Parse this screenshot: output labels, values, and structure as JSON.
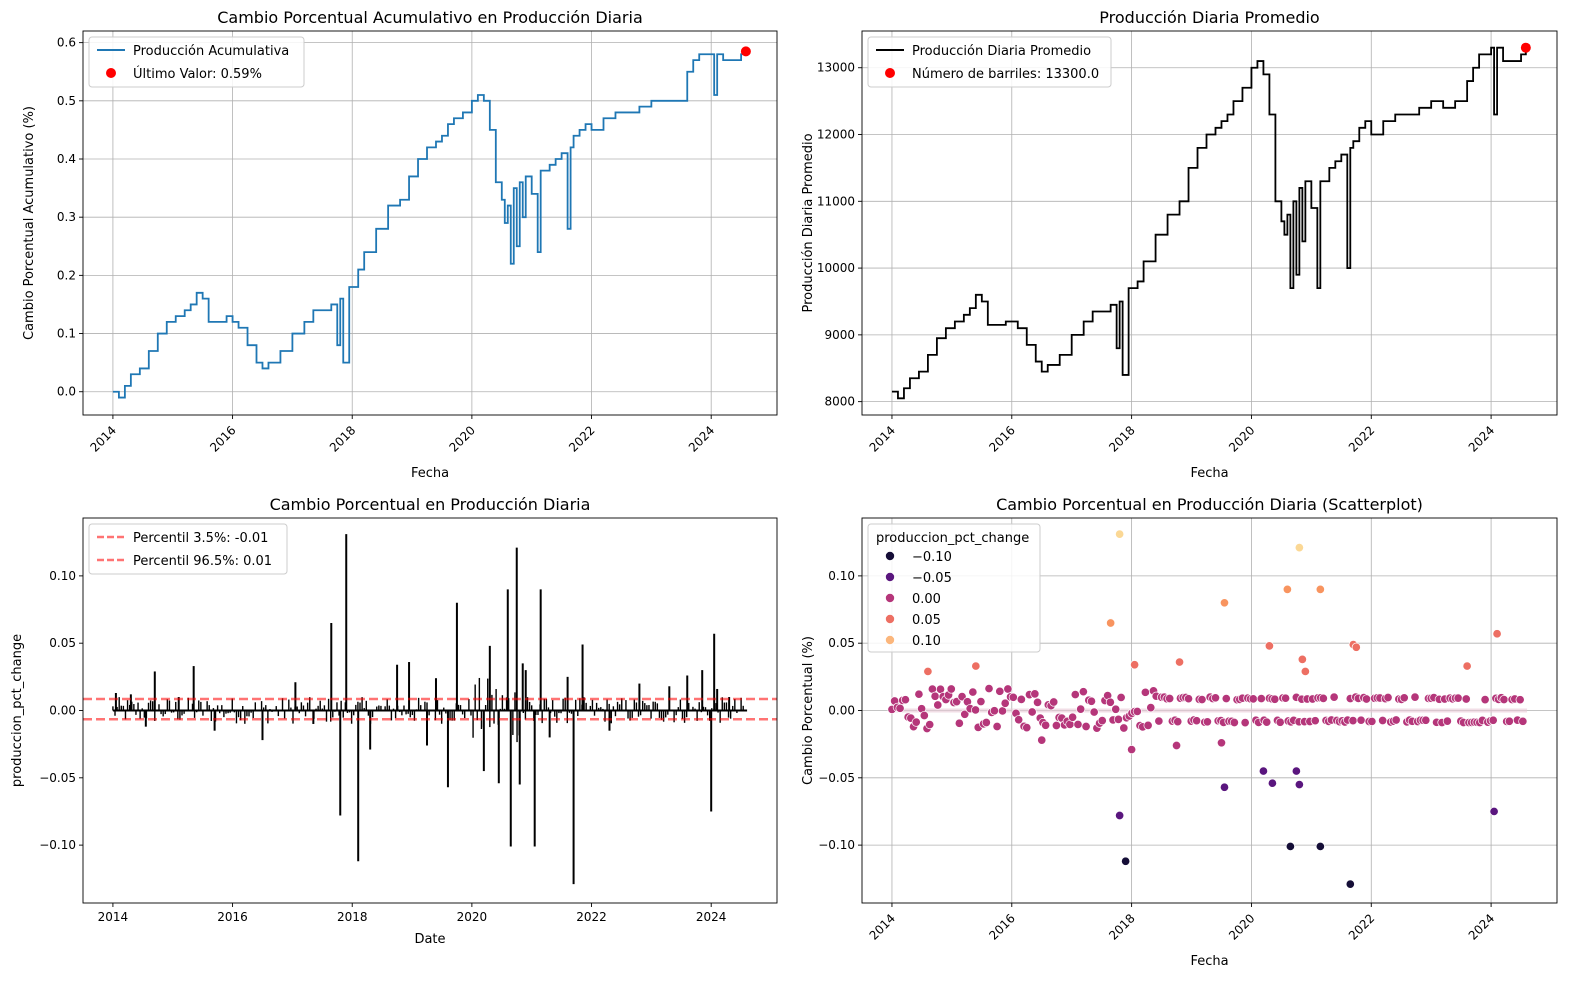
{
  "chart_data": [
    {
      "type": "line",
      "title": "Cambio Porcentual Acumulativo en Producción Diaria",
      "xlabel": "Fecha",
      "ylabel": "Cambio Porcentual Acumulativo (%)",
      "xlim": [
        2013.5,
        2025.1
      ],
      "ylim": [
        -0.04,
        0.62
      ],
      "xticks": [
        2014,
        2016,
        2018,
        2020,
        2022,
        2024
      ],
      "xtick_labels": [
        "2014",
        "2016",
        "2018",
        "2020",
        "2022",
        "2024"
      ],
      "xtick_rotation": 45,
      "yticks": [
        0.0,
        0.1,
        0.2,
        0.3,
        0.4,
        0.5,
        0.6
      ],
      "ytick_labels": [
        "0.0",
        "0.1",
        "0.2",
        "0.3",
        "0.4",
        "0.5",
        "0.6"
      ],
      "grid": true,
      "legend_position": "top-left",
      "series": [
        {
          "name": "Producción Acumulativa",
          "color": "#1f77b4",
          "x": [
            2014.0,
            2014.1,
            2014.2,
            2014.3,
            2014.45,
            2014.6,
            2014.75,
            2014.9,
            2015.05,
            2015.2,
            2015.3,
            2015.4,
            2015.5,
            2015.6,
            2015.75,
            2015.9,
            2016.0,
            2016.1,
            2016.25,
            2016.4,
            2016.5,
            2016.6,
            2016.8,
            2017.0,
            2017.2,
            2017.35,
            2017.5,
            2017.65,
            2017.75,
            2017.8,
            2017.85,
            2017.95,
            2018.1,
            2018.2,
            2018.4,
            2018.6,
            2018.8,
            2018.95,
            2019.1,
            2019.25,
            2019.4,
            2019.5,
            2019.6,
            2019.7,
            2019.85,
            2020.0,
            2020.1,
            2020.2,
            2020.3,
            2020.4,
            2020.5,
            2020.55,
            2020.6,
            2020.65,
            2020.7,
            2020.75,
            2020.8,
            2020.85,
            2020.9,
            2021.0,
            2021.1,
            2021.15,
            2021.2,
            2021.3,
            2021.4,
            2021.5,
            2021.6,
            2021.65,
            2021.7,
            2021.8,
            2021.9,
            2022.0,
            2022.2,
            2022.4,
            2022.6,
            2022.8,
            2023.0,
            2023.2,
            2023.4,
            2023.6,
            2023.7,
            2023.8,
            2024.0,
            2024.05,
            2024.1,
            2024.2,
            2024.5,
            2024.58
          ],
          "y": [
            0.0,
            -0.01,
            0.01,
            0.03,
            0.04,
            0.07,
            0.1,
            0.12,
            0.13,
            0.14,
            0.15,
            0.17,
            0.16,
            0.12,
            0.12,
            0.13,
            0.12,
            0.11,
            0.08,
            0.05,
            0.04,
            0.05,
            0.07,
            0.1,
            0.12,
            0.14,
            0.14,
            0.15,
            0.08,
            0.16,
            0.05,
            0.18,
            0.21,
            0.24,
            0.28,
            0.32,
            0.33,
            0.37,
            0.4,
            0.42,
            0.43,
            0.44,
            0.46,
            0.47,
            0.48,
            0.5,
            0.51,
            0.5,
            0.45,
            0.36,
            0.33,
            0.29,
            0.32,
            0.22,
            0.35,
            0.25,
            0.36,
            0.3,
            0.37,
            0.34,
            0.24,
            0.38,
            0.38,
            0.39,
            0.4,
            0.41,
            0.28,
            0.42,
            0.44,
            0.45,
            0.46,
            0.45,
            0.47,
            0.48,
            0.48,
            0.49,
            0.5,
            0.5,
            0.5,
            0.55,
            0.57,
            0.58,
            0.58,
            0.51,
            0.58,
            0.57,
            0.58,
            0.59
          ]
        },
        {
          "name": "Último Valor: 0.59%",
          "color": "#ff0000",
          "x": [
            2024.58
          ],
          "y": [
            0.585
          ]
        }
      ]
    },
    {
      "type": "line",
      "title": "Producción Diaria Promedio",
      "xlabel": "Fecha",
      "ylabel": "Producción Diaria Promedio",
      "xlim": [
        2013.5,
        2025.1
      ],
      "ylim": [
        7800,
        13550
      ],
      "xticks": [
        2014,
        2016,
        2018,
        2020,
        2022,
        2024
      ],
      "xtick_labels": [
        "2014",
        "2016",
        "2018",
        "2020",
        "2022",
        "2024"
      ],
      "xtick_rotation": 45,
      "yticks": [
        8000,
        9000,
        10000,
        11000,
        12000,
        13000
      ],
      "ytick_labels": [
        "8000",
        "9000",
        "10000",
        "11000",
        "12000",
        "13000"
      ],
      "grid": true,
      "legend_position": "top-left",
      "series": [
        {
          "name": "Producción Diaria Promedio",
          "color": "#000000",
          "x": [
            2014.0,
            2014.1,
            2014.2,
            2014.3,
            2014.45,
            2014.6,
            2014.75,
            2014.9,
            2015.05,
            2015.2,
            2015.3,
            2015.4,
            2015.5,
            2015.6,
            2015.75,
            2015.9,
            2016.0,
            2016.1,
            2016.25,
            2016.4,
            2016.5,
            2016.6,
            2016.8,
            2017.0,
            2017.2,
            2017.35,
            2017.5,
            2017.65,
            2017.75,
            2017.8,
            2017.85,
            2017.95,
            2018.1,
            2018.2,
            2018.4,
            2018.6,
            2018.8,
            2018.95,
            2019.1,
            2019.25,
            2019.4,
            2019.5,
            2019.6,
            2019.7,
            2019.85,
            2020.0,
            2020.1,
            2020.2,
            2020.3,
            2020.4,
            2020.5,
            2020.55,
            2020.6,
            2020.65,
            2020.7,
            2020.75,
            2020.8,
            2020.85,
            2020.9,
            2021.0,
            2021.1,
            2021.15,
            2021.2,
            2021.3,
            2021.4,
            2021.5,
            2021.6,
            2021.65,
            2021.7,
            2021.8,
            2021.9,
            2022.0,
            2022.2,
            2022.4,
            2022.6,
            2022.8,
            2023.0,
            2023.2,
            2023.4,
            2023.6,
            2023.7,
            2023.8,
            2024.0,
            2024.05,
            2024.1,
            2024.2,
            2024.5,
            2024.58
          ],
          "y": [
            8150,
            8050,
            8200,
            8350,
            8450,
            8700,
            8950,
            9100,
            9200,
            9300,
            9400,
            9600,
            9500,
            9150,
            9150,
            9200,
            9200,
            9100,
            8850,
            8600,
            8450,
            8550,
            8700,
            9000,
            9200,
            9350,
            9350,
            9450,
            8800,
            9500,
            8400,
            9700,
            9800,
            10100,
            10500,
            10800,
            11000,
            11500,
            11800,
            12000,
            12100,
            12200,
            12300,
            12500,
            12700,
            13000,
            13100,
            12900,
            12300,
            11000,
            10700,
            10500,
            10800,
            9700,
            11000,
            9900,
            11200,
            10400,
            11300,
            10900,
            9700,
            11300,
            11300,
            11500,
            11600,
            11700,
            10000,
            11800,
            11900,
            12100,
            12200,
            12000,
            12200,
            12300,
            12300,
            12400,
            12500,
            12400,
            12500,
            12800,
            13000,
            13200,
            13300,
            12300,
            13300,
            13100,
            13200,
            13300
          ]
        },
        {
          "name": "Número de barriles: 13300.0",
          "color": "#ff0000",
          "x": [
            2024.58
          ],
          "y": [
            13300
          ]
        }
      ]
    },
    {
      "type": "line",
      "title": "Cambio Porcentual en Producción Diaria",
      "xlabel": "Date",
      "ylabel": "produccion_pct_change",
      "xlim": [
        2013.5,
        2025.1
      ],
      "ylim": [
        -0.143,
        0.143
      ],
      "xticks": [
        2014,
        2016,
        2018,
        2020,
        2022,
        2024
      ],
      "xtick_labels": [
        "2014",
        "2016",
        "2018",
        "2020",
        "2022",
        "2024"
      ],
      "xtick_rotation": 0,
      "yticks": [
        -0.1,
        -0.05,
        0.0,
        0.05,
        0.1
      ],
      "ytick_labels": [
        "−0.10",
        "−0.05",
        "0.00",
        "0.05",
        "0.10"
      ],
      "grid": false,
      "legend_position": "top-left",
      "series": [
        {
          "name": "produccion_pct_change",
          "color": "#000000",
          "x": [
            2014.05,
            2014.3,
            2014.55,
            2014.7,
            2015.1,
            2015.35,
            2015.7,
            2016.5,
            2017.05,
            2017.35,
            2017.65,
            2017.8,
            2017.9,
            2018.1,
            2018.3,
            2018.75,
            2018.95,
            2019.25,
            2019.4,
            2019.6,
            2019.75,
            2020.2,
            2020.3,
            2020.45,
            2020.6,
            2020.65,
            2020.75,
            2020.8,
            2020.85,
            2020.9,
            2021.05,
            2021.15,
            2021.3,
            2021.6,
            2021.7,
            2021.85,
            2022.3,
            2022.8,
            2023.3,
            2023.6,
            2023.85,
            2024.0,
            2024.05,
            2024.1,
            2024.3
          ],
          "y": [
            0.013,
            0.012,
            -0.012,
            0.029,
            0.01,
            0.033,
            -0.015,
            -0.022,
            0.021,
            -0.01,
            0.065,
            -0.078,
            0.131,
            -0.112,
            -0.029,
            0.034,
            0.036,
            -0.026,
            0.024,
            -0.057,
            0.08,
            -0.045,
            0.048,
            -0.054,
            0.09,
            -0.101,
            0.121,
            -0.055,
            0.035,
            0.03,
            -0.101,
            0.09,
            -0.02,
            0.025,
            -0.129,
            0.049,
            -0.015,
            0.02,
            0.018,
            0.026,
            0.03,
            -0.075,
            0.057,
            0.016,
            0.01
          ]
        }
      ],
      "hlines": [
        {
          "name": "Percentil 3.5%: -0.01",
          "y": -0.0065,
          "color": "#ff0000",
          "style": "dashed"
        },
        {
          "name": "Percentil 96.5%: 0.01",
          "y": 0.0085,
          "color": "#ff0000",
          "style": "dashed"
        }
      ]
    },
    {
      "type": "scatter",
      "title": "Cambio Porcentual en Producción Diaria (Scatterplot)",
      "xlabel": "Fecha",
      "ylabel": "Cambio Porcentual (%)",
      "xlim": [
        2013.5,
        2025.1
      ],
      "ylim": [
        -0.143,
        0.143
      ],
      "xticks": [
        2014,
        2016,
        2018,
        2020,
        2022,
        2024
      ],
      "xtick_labels": [
        "2014",
        "2016",
        "2018",
        "2020",
        "2022",
        "2024"
      ],
      "xtick_rotation": 45,
      "yticks": [
        -0.1,
        -0.05,
        0.0,
        0.05,
        0.1
      ],
      "ytick_labels": [
        "−0.10",
        "−0.05",
        "0.00",
        "0.05",
        "0.10"
      ],
      "grid": true,
      "legend_position": "top-left",
      "legend_title": "produccion_pct_change",
      "legend_entries": [
        {
          "label": "−0.10",
          "color": "#150e37"
        },
        {
          "label": "−0.05",
          "color": "#5a167e"
        },
        {
          "label": "0.00",
          "color": "#b5367a"
        },
        {
          "label": "0.05",
          "color": "#ed6f63"
        },
        {
          "label": "0.10",
          "color": "#fbb67c"
        }
      ],
      "points": [
        {
          "x": 2017.65,
          "y": 0.065
        },
        {
          "x": 2017.8,
          "y": -0.078
        },
        {
          "x": 2017.8,
          "y": 0.131
        },
        {
          "x": 2017.9,
          "y": -0.112
        },
        {
          "x": 2018.0,
          "y": -0.029
        },
        {
          "x": 2018.05,
          "y": 0.034
        },
        {
          "x": 2018.8,
          "y": 0.036
        },
        {
          "x": 2018.75,
          "y": -0.026
        },
        {
          "x": 2019.55,
          "y": 0.08
        },
        {
          "x": 2019.55,
          "y": -0.057
        },
        {
          "x": 2019.5,
          "y": -0.024
        },
        {
          "x": 2020.2,
          "y": -0.045
        },
        {
          "x": 2020.3,
          "y": 0.048
        },
        {
          "x": 2020.35,
          "y": -0.054
        },
        {
          "x": 2020.6,
          "y": 0.09
        },
        {
          "x": 2020.65,
          "y": -0.101
        },
        {
          "x": 2020.8,
          "y": 0.121
        },
        {
          "x": 2020.8,
          "y": -0.055
        },
        {
          "x": 2020.75,
          "y": -0.045
        },
        {
          "x": 2021.15,
          "y": 0.09
        },
        {
          "x": 2021.15,
          "y": -0.101
        },
        {
          "x": 2021.65,
          "y": -0.129
        },
        {
          "x": 2021.7,
          "y": 0.049
        },
        {
          "x": 2021.75,
          "y": 0.047
        },
        {
          "x": 2024.05,
          "y": -0.075
        },
        {
          "x": 2024.1,
          "y": 0.057
        },
        {
          "x": 2023.6,
          "y": 0.033
        },
        {
          "x": 2015.4,
          "y": 0.033
        },
        {
          "x": 2014.6,
          "y": 0.029
        },
        {
          "x": 2016.5,
          "y": -0.022
        },
        {
          "x": 2020.85,
          "y": 0.038
        },
        {
          "x": 2020.9,
          "y": 0.029
        }
      ],
      "noise_x_range": [
        2014.0,
        2024.55
      ],
      "noise_y_range": [
        -0.015,
        0.02
      ]
    }
  ]
}
